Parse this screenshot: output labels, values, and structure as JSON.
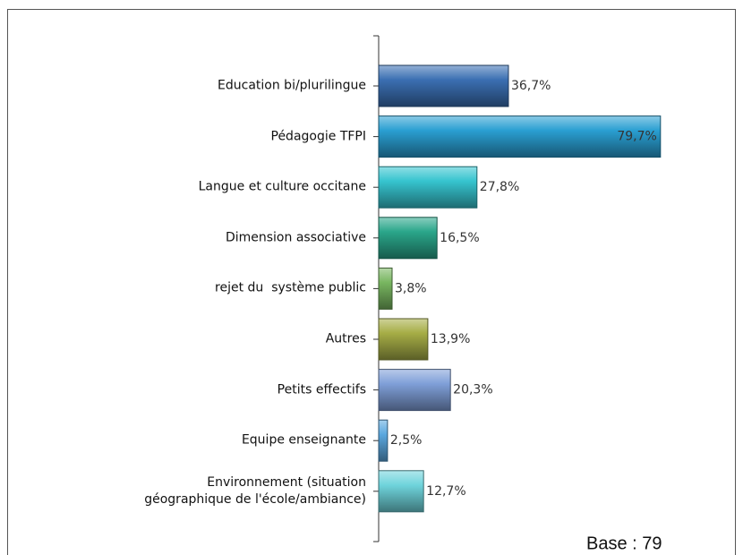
{
  "chart_data": {
    "type": "barh",
    "categories": [
      "Education bi/plurilingue",
      "Pédagogie TFPI",
      "Langue et culture occitane",
      "Dimension associative",
      "rejet du  système public",
      "Autres",
      "Petits effectifs",
      "Equipe enseignante",
      "Environnement (situation\ngéographique de l'école/ambiance)"
    ],
    "values": [
      36.7,
      79.7,
      27.8,
      16.5,
      3.8,
      13.9,
      20.3,
      2.5,
      12.7
    ],
    "value_labels": [
      "36,7%",
      "79,7%",
      "27,8%",
      "16,5%",
      "3,8%",
      "13,9%",
      "20,3%",
      "2,5%",
      "12,7%"
    ],
    "colors": [
      "#3b6fb2",
      "#2a9fd2",
      "#36c4cf",
      "#2aa68a",
      "#78b660",
      "#a6ad46",
      "#7f9fd8",
      "#5aa7df",
      "#6fd4dc"
    ],
    "annotation": "Base : 79"
  }
}
